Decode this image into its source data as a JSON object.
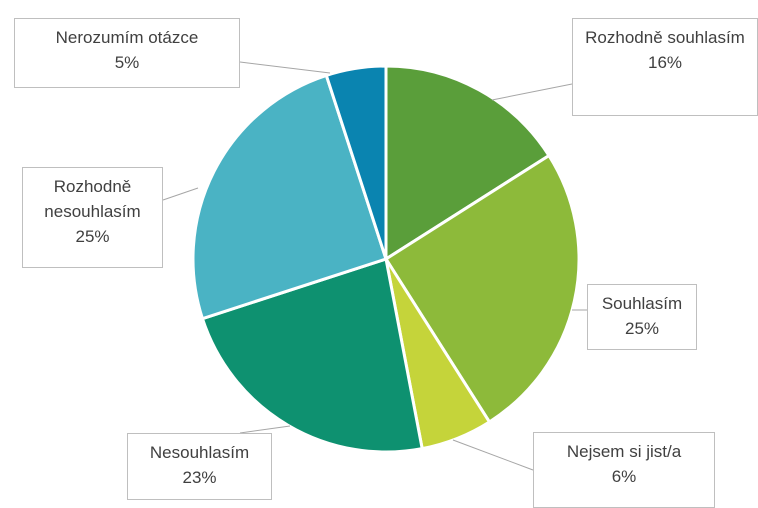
{
  "chart_data": {
    "type": "pie",
    "categories": [
      "Rozhodně souhlasím",
      "Souhlasím",
      "Nejsem si jist/a",
      "Nesouhlasím",
      "Rozhodně nesouhlasím",
      "Nerozumím otázce"
    ],
    "values": [
      16,
      25,
      6,
      23,
      25,
      5
    ],
    "value_labels": [
      "16%",
      "25%",
      "6%",
      "23%",
      "25%",
      "5%"
    ],
    "colors": [
      "#5a9e3a",
      "#8dba3a",
      "#c5d43a",
      "#0e9170",
      "#4ab3c4",
      "#0a84b0"
    ]
  }
}
